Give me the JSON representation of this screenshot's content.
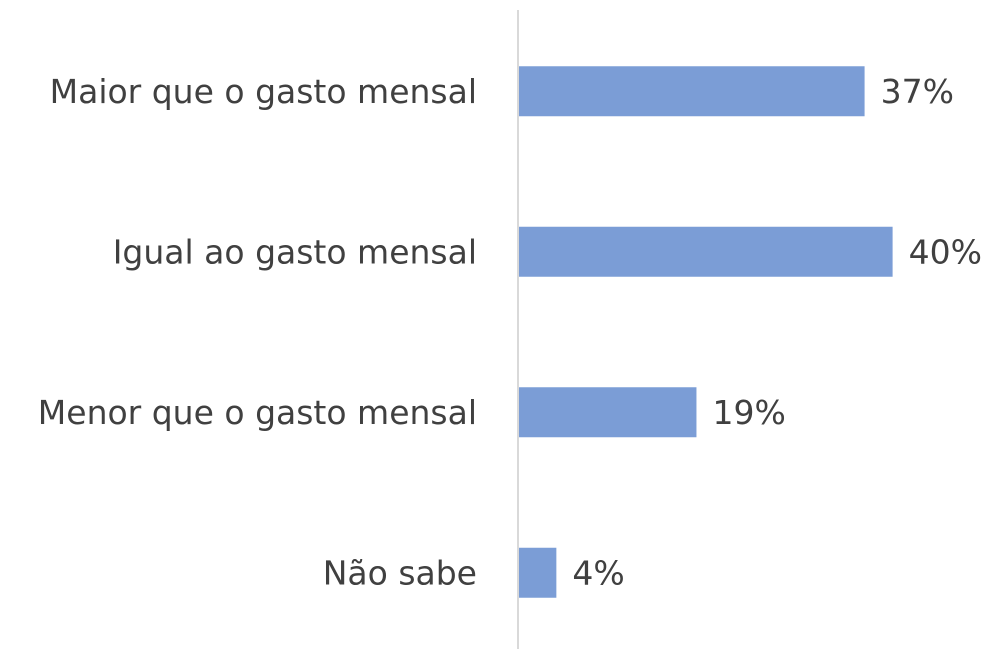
{
  "chart_data": {
    "type": "bar",
    "orientation": "horizontal",
    "categories": [
      "Maior que o gasto mensal",
      "Igual ao gasto mensal",
      "Menor que o gasto mensal",
      "Não sabe"
    ],
    "values": [
      37,
      40,
      19,
      4
    ],
    "value_labels": [
      "37%",
      "40%",
      "19%",
      "4%"
    ],
    "color": "#7b9dd6",
    "xlim": [
      0,
      50
    ]
  }
}
